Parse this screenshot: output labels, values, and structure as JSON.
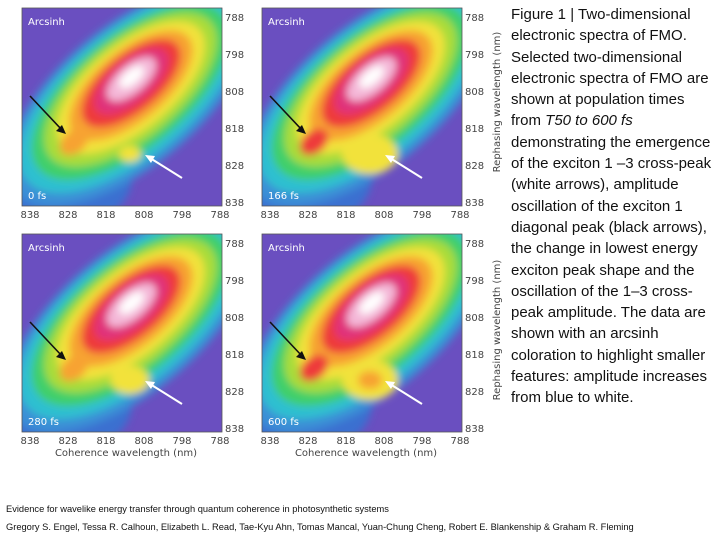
{
  "panels": [
    {
      "label": "Arcsinh",
      "time": "0 fs",
      "xticks": [
        838,
        828,
        818,
        808,
        798,
        788
      ],
      "yticks": [
        788,
        798,
        808,
        818,
        828,
        838
      ]
    },
    {
      "label": "Arcsinh",
      "time": "166 fs",
      "xticks": [
        838,
        828,
        818,
        808,
        798,
        788
      ],
      "yticks": [
        788,
        798,
        808,
        818,
        828,
        838
      ]
    },
    {
      "label": "Arcsinh",
      "time": "280 fs",
      "xticks": [
        838,
        828,
        818,
        808,
        798,
        788
      ],
      "yticks": [
        788,
        798,
        808,
        818,
        828,
        838
      ]
    },
    {
      "label": "Arcsinh",
      "time": "600 fs",
      "xticks": [
        838,
        828,
        818,
        808,
        798,
        788
      ],
      "yticks": [
        788,
        798,
        808,
        818,
        828,
        838
      ]
    }
  ],
  "y_axis_label": "Rephasing wavelength (nm)",
  "x_axis_label": "Coherence wavelength (nm)",
  "caption": {
    "pre": "Figure 1 | Two-dimensional electronic spectra of FMO. Selected two-dimensional electronic spectra of FMO are shown at population times from ",
    "italic": "T50 to 600 fs",
    "post": " demonstrating the emergence of the exciton 1 –3 cross-peak (white arrows), amplitude oscillation of the exciton 1 diagonal peak (black arrows), the change in lowest energy exciton peak shape and the oscillation of the 1–3 cross-peak amplitude. The data are shown with an arcsinh coloration to highlight smaller features: amplitude increases from blue to white."
  },
  "footer": {
    "title": "Evidence for wavelike energy transfer through quantum coherence in photosynthetic systems",
    "authors": "Gregory S. Engel, Tessa R. Calhoun, Elizabeth L. Read, Tae-Kyu Ahn, Tomas Mancal, Yuan-Chung Cheng, Robert E. Blankenship & Graham R. Fleming"
  }
}
